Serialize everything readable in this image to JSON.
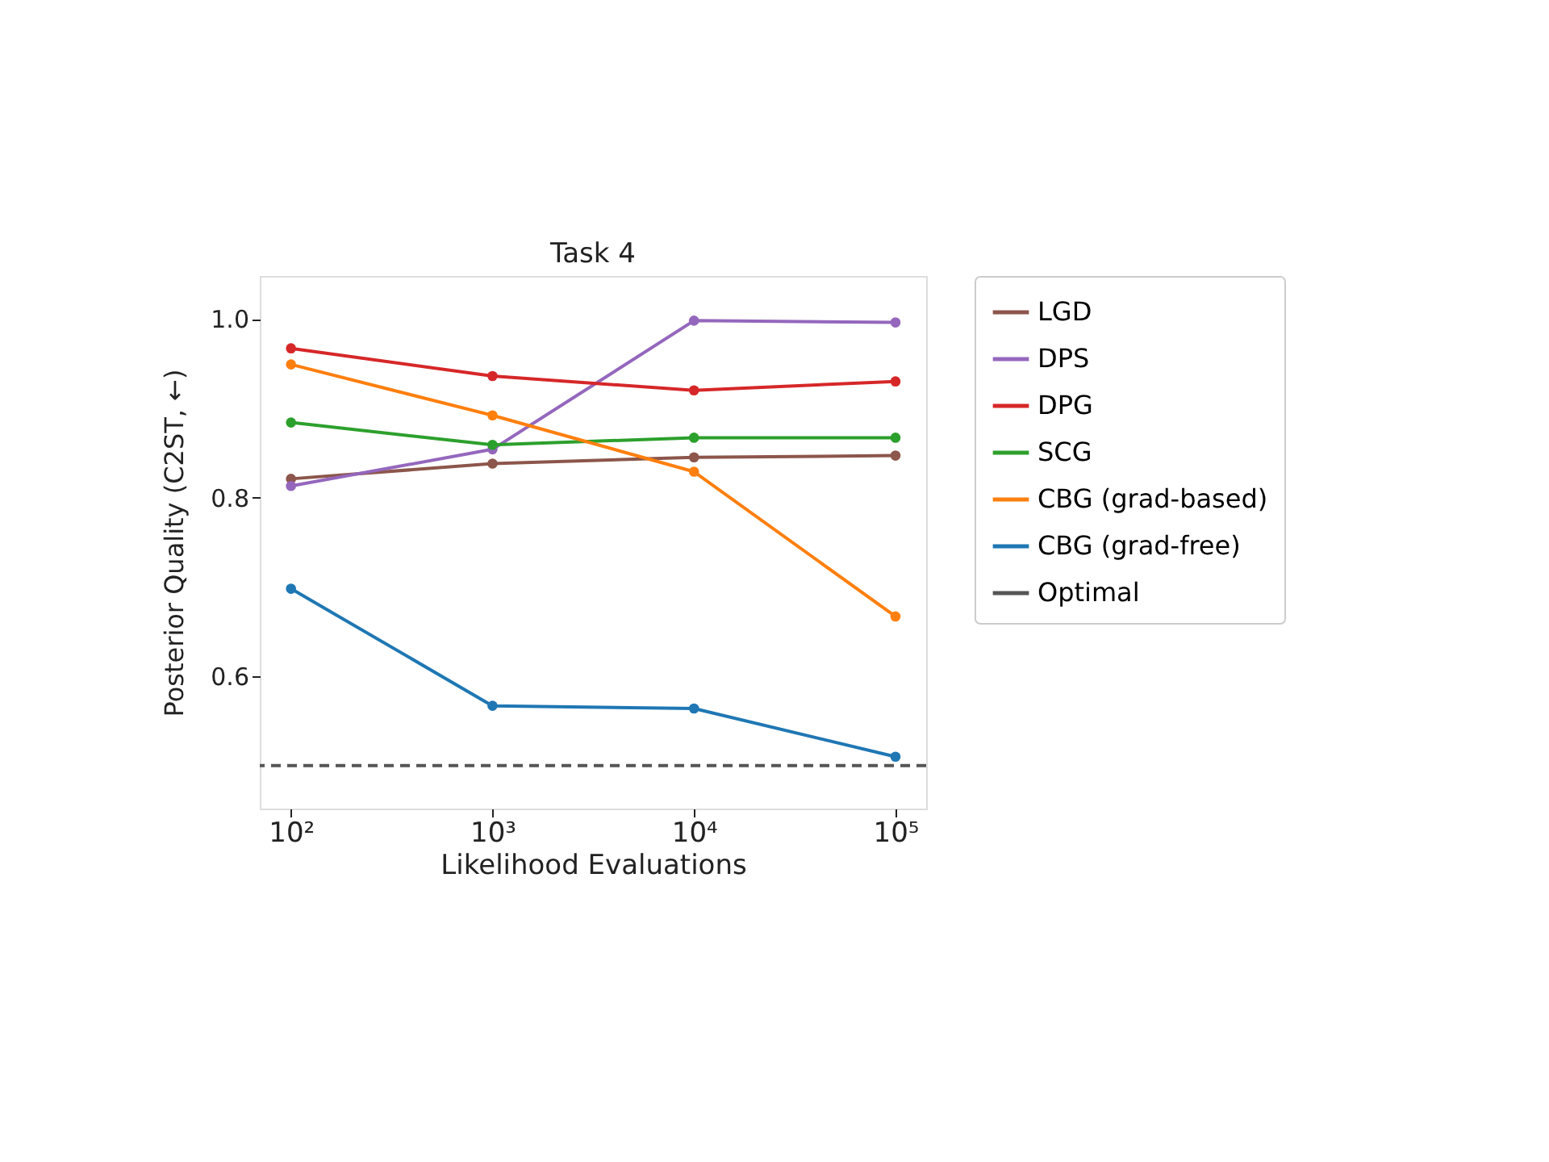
{
  "chart_data": {
    "type": "line",
    "title": "Task 4",
    "xlabel": "Likelihood Evaluations",
    "ylabel": "Posterior Quality (C2ST, ←)",
    "x": [
      100,
      1000,
      10000,
      100000
    ],
    "series": [
      {
        "name": "LGD",
        "color": "#8c564b",
        "values": [
          0.821,
          0.838,
          0.845,
          0.847
        ]
      },
      {
        "name": "DPS",
        "color": "#9467bd",
        "values": [
          0.813,
          0.854,
          0.998,
          0.996
        ]
      },
      {
        "name": "DPG",
        "color": "#d62728",
        "values": [
          0.967,
          0.936,
          0.92,
          0.93
        ]
      },
      {
        "name": "SCG",
        "color": "#2ca02c",
        "values": [
          0.884,
          0.859,
          0.867,
          0.867
        ]
      },
      {
        "name": "CBG (grad-based)",
        "color": "#ff7f0e",
        "values": [
          0.949,
          0.892,
          0.829,
          0.667
        ]
      },
      {
        "name": "CBG (grad-free)",
        "color": "#1f77b4",
        "values": [
          0.698,
          0.567,
          0.564,
          0.51
        ]
      }
    ],
    "ref_lines": [
      {
        "axis": "y",
        "value": 0.5,
        "label": "Optimal",
        "color": "#555555",
        "line_style": "dashed"
      }
    ],
    "log": "x",
    "xlim": [
      70,
      142000
    ],
    "xticks": [
      {
        "value": 100,
        "label": "10²"
      },
      {
        "value": 1000,
        "label": "10³"
      },
      {
        "value": 10000,
        "label": "10⁴"
      },
      {
        "value": 100000,
        "label": "10⁵"
      }
    ],
    "ylim": [
      0.452,
      1.048
    ],
    "yticks": [
      {
        "value": 0.6,
        "label": "0.6"
      },
      {
        "value": 0.8,
        "label": "0.8"
      },
      {
        "value": 1.0,
        "label": "1.0"
      }
    ],
    "marker": "circle",
    "line_style": "solid",
    "grid": false,
    "legend": "right"
  }
}
